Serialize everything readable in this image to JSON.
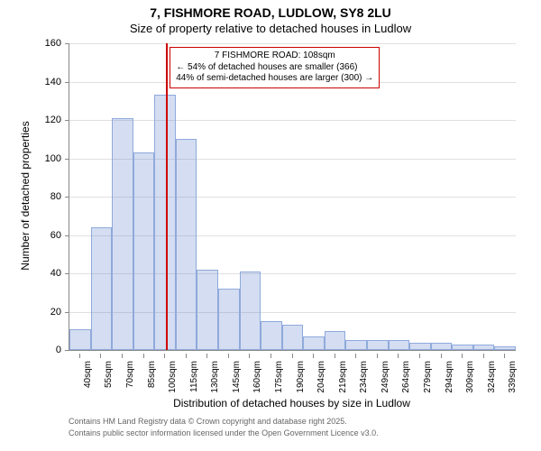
{
  "title_main": "7, FISHMORE ROAD, LUDLOW, SY8 2LU",
  "title_sub": "Size of property relative to detached houses in Ludlow",
  "ylabel": "Number of detached properties",
  "xlabel": "Distribution of detached houses by size in Ludlow",
  "footer1": "Contains HM Land Registry data © Crown copyright and database right 2025.",
  "footer2": "Contains public sector information licensed under the Open Government Licence v3.0.",
  "chart": {
    "type": "histogram",
    "ylim": [
      0,
      160
    ],
    "ytick_step": 20,
    "yticks": [
      0,
      20,
      40,
      60,
      80,
      100,
      120,
      140,
      160
    ],
    "categories": [
      "40sqm",
      "55sqm",
      "70sqm",
      "85sqm",
      "100sqm",
      "115sqm",
      "130sqm",
      "145sqm",
      "160sqm",
      "175sqm",
      "190sqm",
      "204sqm",
      "219sqm",
      "234sqm",
      "249sqm",
      "264sqm",
      "279sqm",
      "294sqm",
      "309sqm",
      "324sqm",
      "339sqm"
    ],
    "values": [
      11,
      64,
      121,
      103,
      133,
      110,
      42,
      32,
      41,
      15,
      13,
      7,
      10,
      5,
      5,
      5,
      4,
      4,
      3,
      3,
      2
    ],
    "bar_fill": "#c7d4ef",
    "bar_border": "#8faadc",
    "background_color": "#ffffff",
    "grid_color": "#e0e0e0",
    "axis_color": "#888888",
    "marker": {
      "position_category_index": 4.55,
      "color": "#cc0000"
    },
    "annotation": {
      "lines": [
        "7 FISHMORE ROAD: 108sqm",
        "← 54% of detached houses are smaller (366)",
        "44% of semi-detached houses are larger (300) →"
      ],
      "border_color": "#cc0000",
      "background_color": "#ffffff",
      "fontsize": 10
    },
    "title_fontsize": 14,
    "subtitle_fontsize": 13,
    "label_fontsize": 12,
    "tick_fontsize": 11
  }
}
